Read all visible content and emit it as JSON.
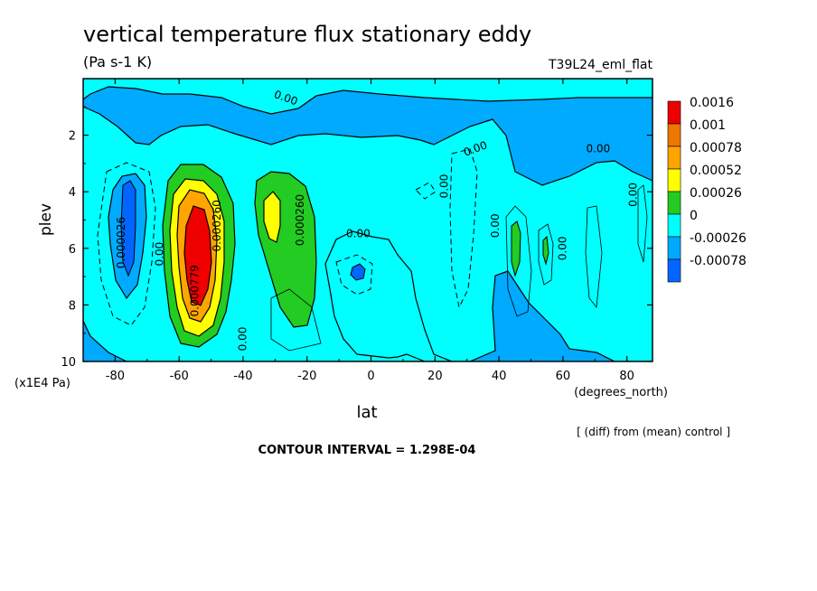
{
  "chart_data": {
    "type": "heatmap",
    "title": "vertical temperature flux stationary eddy",
    "units": "(Pa s-1 K)",
    "run_label": "T39L24_eml_flat",
    "xlabel": "lat",
    "x_units": "(degrees_north)",
    "ylabel": "plev",
    "y_units": "(x1E4 Pa)",
    "xlim": [
      -90,
      88
    ],
    "ylim": [
      10,
      0
    ],
    "x_ticks": [
      -80,
      -60,
      -40,
      -20,
      0,
      20,
      40,
      60,
      80
    ],
    "x_tick_labels": [
      "-80",
      "-60",
      "-40",
      "-20",
      "0",
      "20",
      "40",
      "60",
      "80"
    ],
    "y_ticks": [
      2,
      4,
      6,
      8,
      10
    ],
    "y_tick_labels": [
      "2",
      "4",
      "6",
      "8",
      "10"
    ],
    "contour_interval_text": "CONTOUR INTERVAL = 1.298E-04",
    "diff_note": "[ (diff) from (mean) control ]",
    "legend": {
      "placement": "right",
      "levels": [
        {
          "label": "0.0016",
          "color": "#ee0000"
        },
        {
          "label": "0.001",
          "color": "#ee7700"
        },
        {
          "label": "0.00078",
          "color": "#ffa500"
        },
        {
          "label": "0.00052",
          "color": "#ffff00"
        },
        {
          "label": "0.00026",
          "color": "#22cc22"
        },
        {
          "label": "0",
          "color": "#00ffff"
        },
        {
          "label": "-0.00026",
          "color": "#00aaff"
        },
        {
          "label": "-0.00078",
          "color": "#0066ff"
        }
      ]
    },
    "contour_labels": [
      {
        "text": "0.00",
        "x": -27,
        "y": 0.8,
        "rot": 20
      },
      {
        "text": "0.00",
        "x": 33,
        "y": 2.6,
        "rot": -20
      },
      {
        "text": "0.00",
        "x": 71,
        "y": 2.6,
        "rot": 0
      },
      {
        "text": "0.00",
        "x": 83,
        "y": 4.1,
        "rot": -90
      },
      {
        "text": "0.00",
        "x": -4,
        "y": 5.6,
        "rot": 0
      },
      {
        "text": "0.00",
        "x": 24,
        "y": 3.8,
        "rot": -90
      },
      {
        "text": "0.00",
        "x": 40,
        "y": 5.2,
        "rot": -90
      },
      {
        "text": "0.00",
        "x": 61,
        "y": 6.0,
        "rot": -90
      },
      {
        "text": "0.00",
        "x": -39,
        "y": 9.2,
        "rot": -90
      },
      {
        "text": "0.000260",
        "x": -21,
        "y": 5.0,
        "rot": -90
      },
      {
        "text": "0.000026",
        "x": -77,
        "y": 5.8,
        "rot": -90
      },
      {
        "text": "0.00",
        "x": -65,
        "y": 6.2,
        "rot": -90
      },
      {
        "text": "0.000260",
        "x": -47,
        "y": 5.2,
        "rot": -90
      },
      {
        "text": "0.000779",
        "x": -54,
        "y": 7.5,
        "rot": -90
      }
    ],
    "features": [
      {
        "name": "positive-max",
        "lat": -53,
        "plev": 6.0,
        "value": 0.0017
      },
      {
        "name": "positive-secondary",
        "lat": -32,
        "plev": 5.0,
        "value": 0.00055
      },
      {
        "name": "positive-cell-46N",
        "lat": 46,
        "plev": 6.5,
        "value": 0.00035
      },
      {
        "name": "negative-min",
        "lat": -76,
        "plev": 5.0,
        "value": -0.0006
      },
      {
        "name": "negative-cell-eq",
        "lat": -3,
        "plev": 7.0,
        "value": -0.0006
      }
    ]
  }
}
